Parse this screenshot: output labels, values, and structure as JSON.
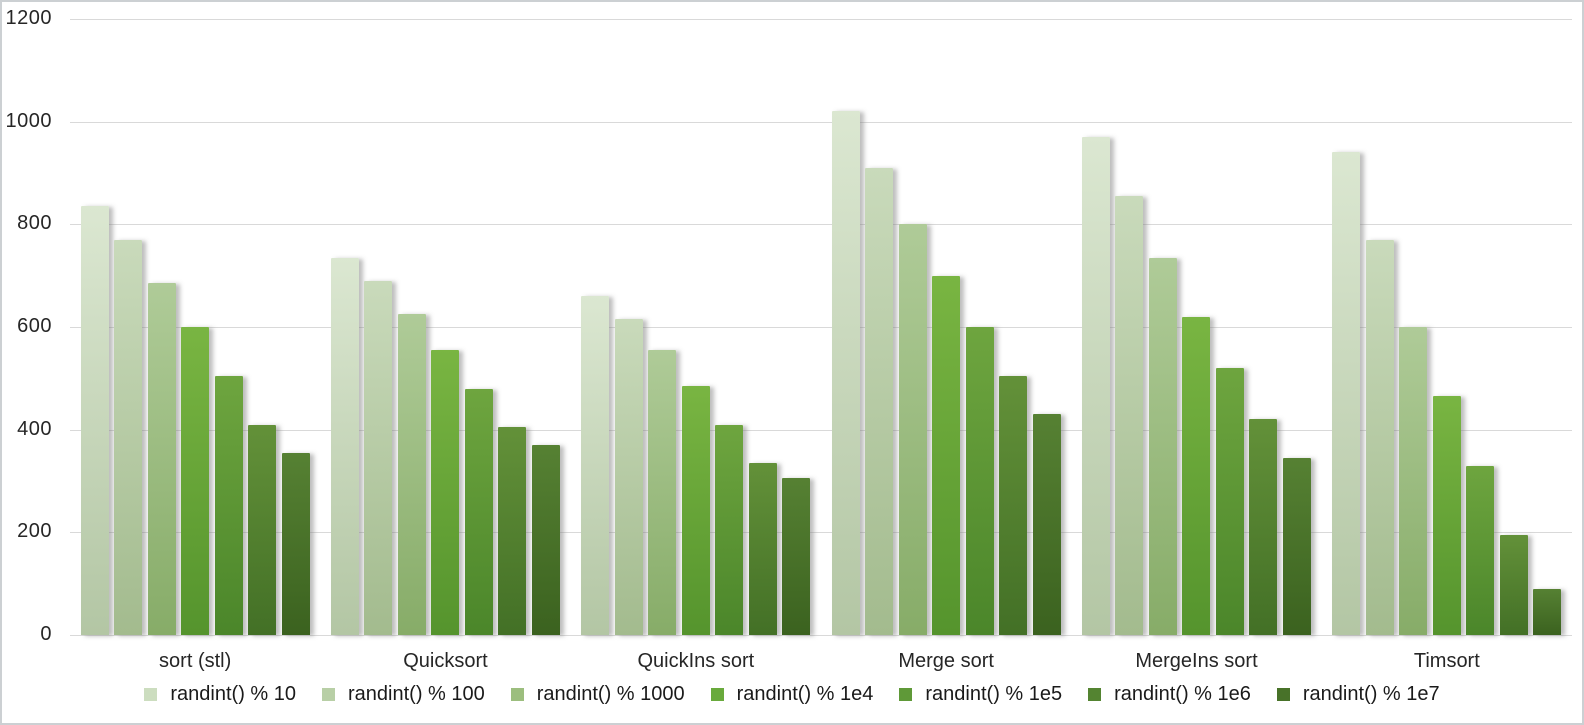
{
  "chart_data": {
    "type": "bar",
    "title": "",
    "xlabel": "",
    "ylabel": "",
    "categories": [
      "sort (stl)",
      "Quicksort",
      "QuickIns sort",
      "Merge sort",
      "MergeIns sort",
      "Timsort"
    ],
    "series": [
      {
        "name": "randint() % 10",
        "values": [
          835,
          735,
          660,
          1020,
          970,
          940
        ],
        "color_top": "#dbe7d1",
        "color_bottom": "#b3c6a4",
        "legend_color": "#ccddbf"
      },
      {
        "name": "randint() % 100",
        "values": [
          770,
          690,
          615,
          910,
          855,
          770
        ],
        "color_top": "#c9dabb",
        "color_bottom": "#a3bb8e",
        "legend_color": "#b8cfa6"
      },
      {
        "name": "randint() % 1000",
        "values": [
          685,
          625,
          555,
          800,
          735,
          600
        ],
        "color_top": "#afcb98",
        "color_bottom": "#87ac68",
        "legend_color": "#9cbe7e"
      },
      {
        "name": "randint() % 1e4",
        "values": [
          600,
          555,
          485,
          700,
          620,
          465
        ],
        "color_top": "#79b542",
        "color_bottom": "#55942d",
        "legend_color": "#69aa3c"
      },
      {
        "name": "randint() % 1e5",
        "values": [
          505,
          480,
          410,
          600,
          520,
          330
        ],
        "color_top": "#6ea53f",
        "color_bottom": "#4b862a",
        "legend_color": "#5f9938"
      },
      {
        "name": "randint() % 1e6",
        "values": [
          410,
          405,
          335,
          505,
          420,
          195
        ],
        "color_top": "#639139",
        "color_bottom": "#437026",
        "legend_color": "#548431"
      },
      {
        "name": "randint() % 1e7",
        "values": [
          355,
          370,
          305,
          430,
          345,
          90
        ],
        "color_top": "#568133",
        "color_bottom": "#3b621f",
        "legend_color": "#487229"
      }
    ],
    "ylim": [
      0,
      1200
    ],
    "yticks": [
      1200,
      1000,
      800,
      600,
      400,
      200,
      0
    ],
    "grid": true,
    "legend_position": "bottom",
    "gridline_color": "#d9d9d9",
    "tick_label_color": "#262626",
    "background_color": "#ffffff"
  }
}
